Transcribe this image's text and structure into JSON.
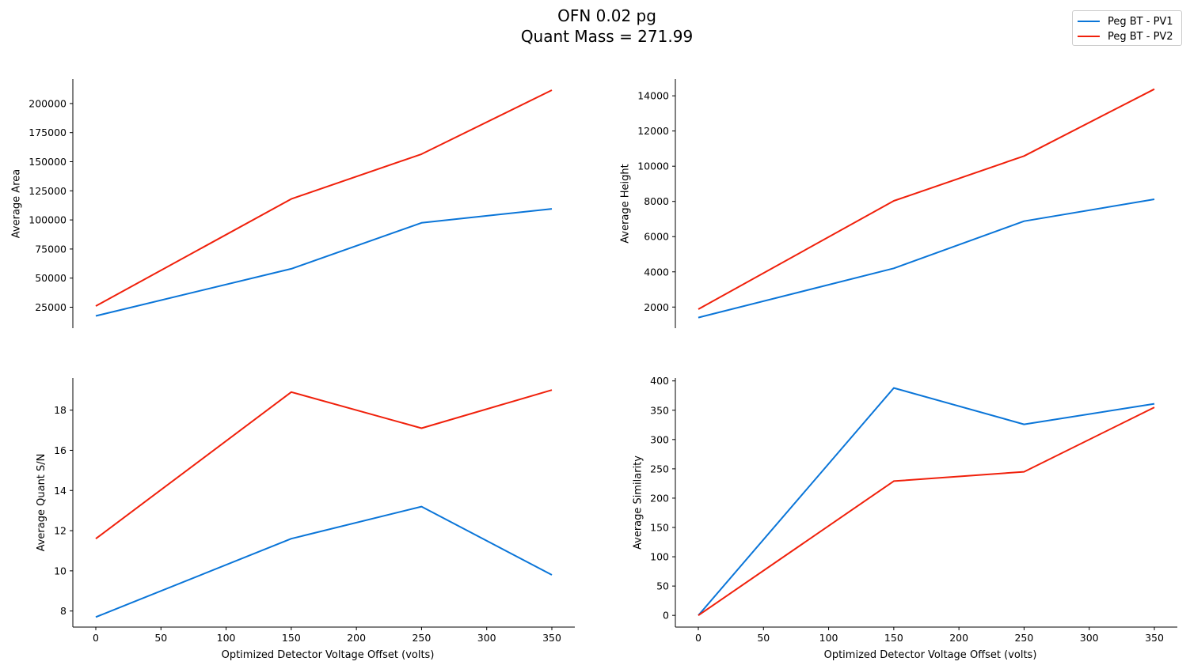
{
  "figure": {
    "title_line1": "OFN 0.02 pg",
    "title_line2": "Quant Mass = 271.99",
    "legend": [
      {
        "label": "Peg BT - PV1",
        "color": "#0a75d8"
      },
      {
        "label": "Peg BT - PV2",
        "color": "#f0200b"
      }
    ]
  },
  "chart_data": [
    {
      "type": "line",
      "position": "top-left",
      "title": "",
      "xlabel": "",
      "ylabel": "Average Area",
      "x": [
        0,
        150,
        250,
        350
      ],
      "xticks": [
        0,
        50,
        100,
        150,
        200,
        250,
        300,
        350
      ],
      "xticklabels_visible": false,
      "yticks": [
        25000,
        50000,
        75000,
        100000,
        125000,
        150000,
        175000,
        200000
      ],
      "ylim": [
        7000,
        221000
      ],
      "grid": false,
      "series": [
        {
          "name": "Peg BT - PV1",
          "color": "#0a75d8",
          "values": [
            17500,
            58000,
            97500,
            109500
          ]
        },
        {
          "name": "Peg BT - PV2",
          "color": "#f0200b",
          "values": [
            26000,
            118000,
            156500,
            211500
          ]
        }
      ]
    },
    {
      "type": "line",
      "position": "top-right",
      "title": "",
      "xlabel": "",
      "ylabel": "Average Height",
      "x": [
        0,
        150,
        250,
        350
      ],
      "xticks": [
        0,
        50,
        100,
        150,
        200,
        250,
        300,
        350
      ],
      "xticklabels_visible": false,
      "yticks": [
        2000,
        4000,
        6000,
        8000,
        10000,
        12000,
        14000
      ],
      "ylim": [
        800,
        14950
      ],
      "grid": false,
      "series": [
        {
          "name": "Peg BT - PV1",
          "color": "#0a75d8",
          "values": [
            1400,
            4200,
            6880,
            8120
          ]
        },
        {
          "name": "Peg BT - PV2",
          "color": "#f0200b",
          "values": [
            1880,
            8030,
            10580,
            14380
          ]
        }
      ]
    },
    {
      "type": "line",
      "position": "bottom-left",
      "title": "",
      "xlabel": "Optimized Detector Voltage Offset (volts)",
      "ylabel": "Average Quant S/N",
      "x": [
        0,
        150,
        250,
        350
      ],
      "xticks": [
        0,
        50,
        100,
        150,
        200,
        250,
        300,
        350
      ],
      "yticks": [
        8,
        10,
        12,
        14,
        16,
        18
      ],
      "ylim": [
        7.2,
        19.6
      ],
      "grid": false,
      "series": [
        {
          "name": "Peg BT - PV1",
          "color": "#0a75d8",
          "values": [
            7.7,
            11.6,
            13.2,
            9.8
          ]
        },
        {
          "name": "Peg BT - PV2",
          "color": "#f0200b",
          "values": [
            11.6,
            18.9,
            17.1,
            19.0
          ]
        }
      ]
    },
    {
      "type": "line",
      "position": "bottom-right",
      "title": "",
      "xlabel": "Optimized Detector Voltage Offset (volts)",
      "ylabel": "Average Similarity",
      "x": [
        0,
        150,
        250,
        350
      ],
      "xticks": [
        0,
        50,
        100,
        150,
        200,
        250,
        300,
        350
      ],
      "yticks": [
        0,
        50,
        100,
        150,
        200,
        250,
        300,
        350,
        400
      ],
      "ylim": [
        -20,
        405
      ],
      "grid": false,
      "series": [
        {
          "name": "Peg BT - PV1",
          "color": "#0a75d8",
          "values": [
            0,
            388,
            326,
            361
          ]
        },
        {
          "name": "Peg BT - PV2",
          "color": "#f0200b",
          "values": [
            0,
            229,
            245,
            355
          ]
        }
      ]
    }
  ]
}
